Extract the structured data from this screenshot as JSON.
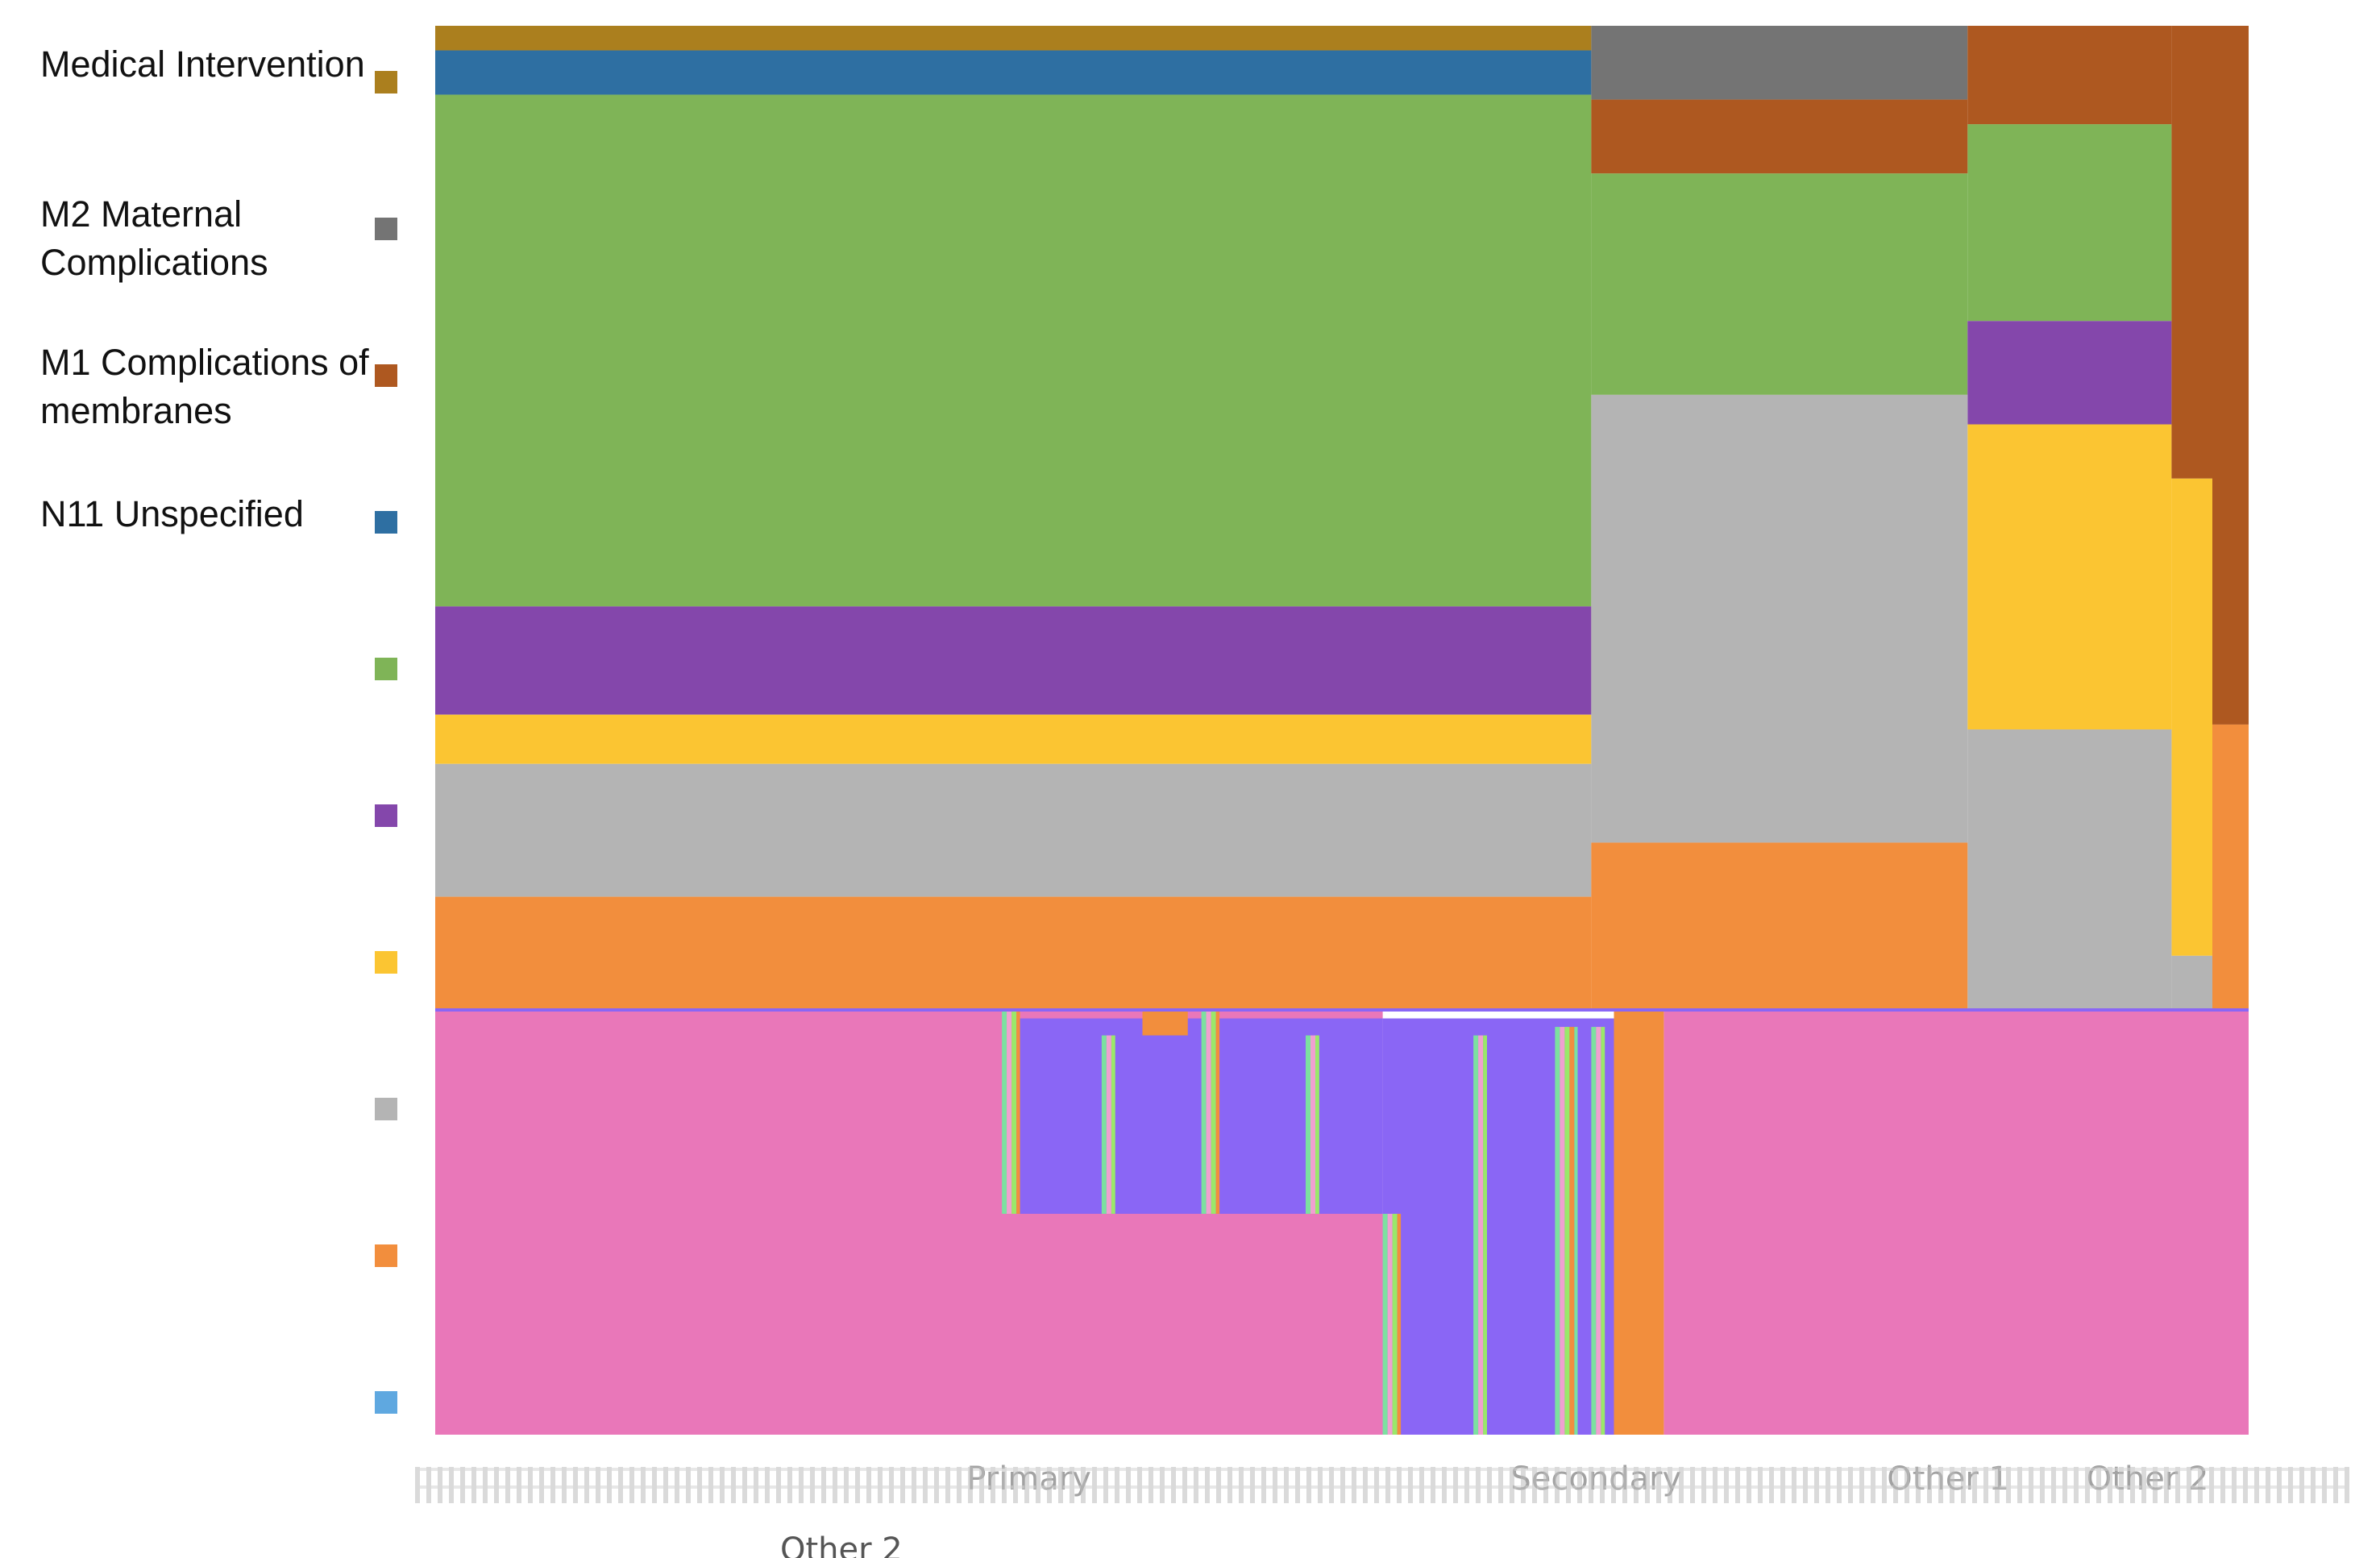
{
  "chart_data": {
    "type": "area",
    "title": "",
    "xlabel": "",
    "ylabel": "",
    "legend_position": "left",
    "categories": [
      "Primary",
      "Secondary",
      "Other 1",
      "Other 2"
    ],
    "axis_extra_label": "Other 2",
    "legend": [
      {
        "name": "Medical Intervention",
        "color": "#AB7F1E"
      },
      {
        "name": "M2 Maternal Complications",
        "color": "#747474"
      },
      {
        "name": "M1 Complications of membranes",
        "color": "#AE5820"
      },
      {
        "name": "N11 Unspecified",
        "color": "#2E6FA2"
      },
      {
        "name": "",
        "color": "#7FB457"
      },
      {
        "name": "",
        "color": "#8447AB"
      },
      {
        "name": "",
        "color": "#FBC532"
      },
      {
        "name": "",
        "color": "#B4B4B4"
      },
      {
        "name": "",
        "color": "#F28E3D"
      },
      {
        "name": "",
        "color": "#5FA8E0"
      }
    ],
    "upper_panel": {
      "x_range": [
        0,
        4
      ],
      "y_range": [
        0,
        100
      ],
      "bands": [
        {
          "color": "#AB7F1E",
          "segments": [
            {
              "x0": 0,
              "x1": 2.55,
              "top": 0,
              "bottom": 2.5
            }
          ]
        },
        {
          "color": "#2E6FA2",
          "segments": [
            {
              "x0": 0,
              "x1": 2.55,
              "top": 2.5,
              "bottom": 7
            }
          ]
        },
        {
          "color": "#7FB457",
          "segments": [
            {
              "x0": 0,
              "x1": 2.55,
              "top": 7,
              "bottom": 59
            },
            {
              "x0": 2.55,
              "x1": 3.38,
              "top": 15,
              "bottom": 37.5
            },
            {
              "x0": 3.38,
              "x1": 3.83,
              "top": 10,
              "bottom": 30
            }
          ]
        },
        {
          "color": "#8447AB",
          "segments": [
            {
              "x0": 0,
              "x1": 2.55,
              "top": 59,
              "bottom": 70
            },
            {
              "x0": 3.38,
              "x1": 3.83,
              "top": 30,
              "bottom": 40.5
            }
          ]
        },
        {
          "color": "#FBC532",
          "segments": [
            {
              "x0": 0,
              "x1": 2.55,
              "top": 70,
              "bottom": 75
            },
            {
              "x0": 3.38,
              "x1": 3.83,
              "top": 40.5,
              "bottom": 71.5
            },
            {
              "x0": 3.83,
              "x1": 3.92,
              "top": 46,
              "bottom": 94.5
            }
          ]
        },
        {
          "color": "#B4B4B4",
          "segments": [
            {
              "x0": 0,
              "x1": 2.55,
              "top": 75,
              "bottom": 88.5
            },
            {
              "x0": 2.55,
              "x1": 3.38,
              "top": 37.5,
              "bottom": 83
            },
            {
              "x0": 3.38,
              "x1": 3.83,
              "top": 71.5,
              "bottom": 100
            },
            {
              "x0": 3.83,
              "x1": 3.92,
              "top": 94.5,
              "bottom": 100
            }
          ]
        },
        {
          "color": "#F28E3D",
          "segments": [
            {
              "x0": 0,
              "x1": 2.55,
              "top": 88.5,
              "bottom": 100
            },
            {
              "x0": 2.55,
              "x1": 3.38,
              "top": 83,
              "bottom": 100
            },
            {
              "x0": 3.92,
              "x1": 4,
              "top": 71,
              "bottom": 100
            }
          ]
        },
        {
          "color": "#747474",
          "segments": [
            {
              "x0": 2.55,
              "x1": 3.38,
              "top": 0,
              "bottom": 7.5
            }
          ]
        },
        {
          "color": "#AE5820",
          "segments": [
            {
              "x0": 2.55,
              "x1": 3.38,
              "top": 7.5,
              "bottom": 15
            },
            {
              "x0": 3.38,
              "x1": 3.83,
              "top": 0,
              "bottom": 10
            },
            {
              "x0": 3.83,
              "x1": 3.92,
              "top": 0,
              "bottom": 46
            },
            {
              "x0": 3.92,
              "x1": 4,
              "top": 0,
              "bottom": 71
            }
          ]
        }
      ]
    },
    "lower_panel": {
      "x_range": [
        0,
        4
      ],
      "y_range": [
        0,
        100
      ],
      "blocks": [
        {
          "color": "#E977B9",
          "x0": 0,
          "x1": 2.09,
          "top": 0,
          "bottom": 100
        },
        {
          "color": "#E977B9",
          "x0": 2.71,
          "x1": 4,
          "top": 0,
          "bottom": 100
        },
        {
          "color": "#8A66F5",
          "x0": 1.28,
          "x1": 2.09,
          "top": 2,
          "bottom": 48
        },
        {
          "color": "#8A66F5",
          "x0": 2.09,
          "x1": 2.6,
          "top": 2,
          "bottom": 100
        },
        {
          "color": "#F28E3D",
          "x0": 2.6,
          "x1": 2.71,
          "top": 0,
          "bottom": 100
        },
        {
          "color": "#F28E3D",
          "x0": 1.56,
          "x1": 1.66,
          "top": 0,
          "bottom": 6
        }
      ],
      "stripes": [
        {
          "x0": 1.25,
          "x1": 1.29,
          "top": 0,
          "bottom": 48
        },
        {
          "x0": 1.47,
          "x1": 1.5,
          "top": 6,
          "bottom": 48
        },
        {
          "x0": 1.69,
          "x1": 1.73,
          "top": 0,
          "bottom": 48
        },
        {
          "x0": 1.92,
          "x1": 1.95,
          "top": 6,
          "bottom": 48
        },
        {
          "x0": 2.09,
          "x1": 2.13,
          "top": 48,
          "bottom": 100
        },
        {
          "x0": 2.29,
          "x1": 2.32,
          "top": 6,
          "bottom": 100
        },
        {
          "x0": 2.47,
          "x1": 2.52,
          "top": 4,
          "bottom": 100
        },
        {
          "x0": 2.55,
          "x1": 2.58,
          "top": 4,
          "bottom": 100
        }
      ]
    }
  }
}
